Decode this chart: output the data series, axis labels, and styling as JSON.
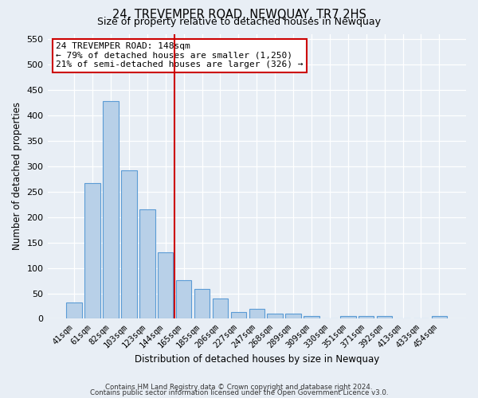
{
  "title": "24, TREVEMPER ROAD, NEWQUAY, TR7 2HS",
  "subtitle": "Size of property relative to detached houses in Newquay",
  "xlabel": "Distribution of detached houses by size in Newquay",
  "ylabel": "Number of detached properties",
  "bar_labels": [
    "41sqm",
    "61sqm",
    "82sqm",
    "103sqm",
    "123sqm",
    "144sqm",
    "165sqm",
    "185sqm",
    "206sqm",
    "227sqm",
    "247sqm",
    "268sqm",
    "289sqm",
    "309sqm",
    "330sqm",
    "351sqm",
    "371sqm",
    "392sqm",
    "413sqm",
    "433sqm",
    "454sqm"
  ],
  "bar_values": [
    32,
    267,
    428,
    292,
    215,
    130,
    76,
    59,
    40,
    14,
    20,
    10,
    10,
    5,
    0,
    5,
    5,
    5,
    0,
    0,
    5
  ],
  "bar_color": "#b8d0e8",
  "bar_edge_color": "#5b9bd5",
  "vline_color": "#cc0000",
  "annotation_text": "24 TREVEMPER ROAD: 148sqm\n← 79% of detached houses are smaller (1,250)\n21% of semi-detached houses are larger (326) →",
  "annotation_box_color": "#ffffff",
  "annotation_box_edge": "#cc0000",
  "ylim": [
    0,
    560
  ],
  "yticks": [
    0,
    50,
    100,
    150,
    200,
    250,
    300,
    350,
    400,
    450,
    500,
    550
  ],
  "bg_color": "#e8eef5",
  "footer_line1": "Contains HM Land Registry data © Crown copyright and database right 2024.",
  "footer_line2": "Contains public sector information licensed under the Open Government Licence v3.0."
}
